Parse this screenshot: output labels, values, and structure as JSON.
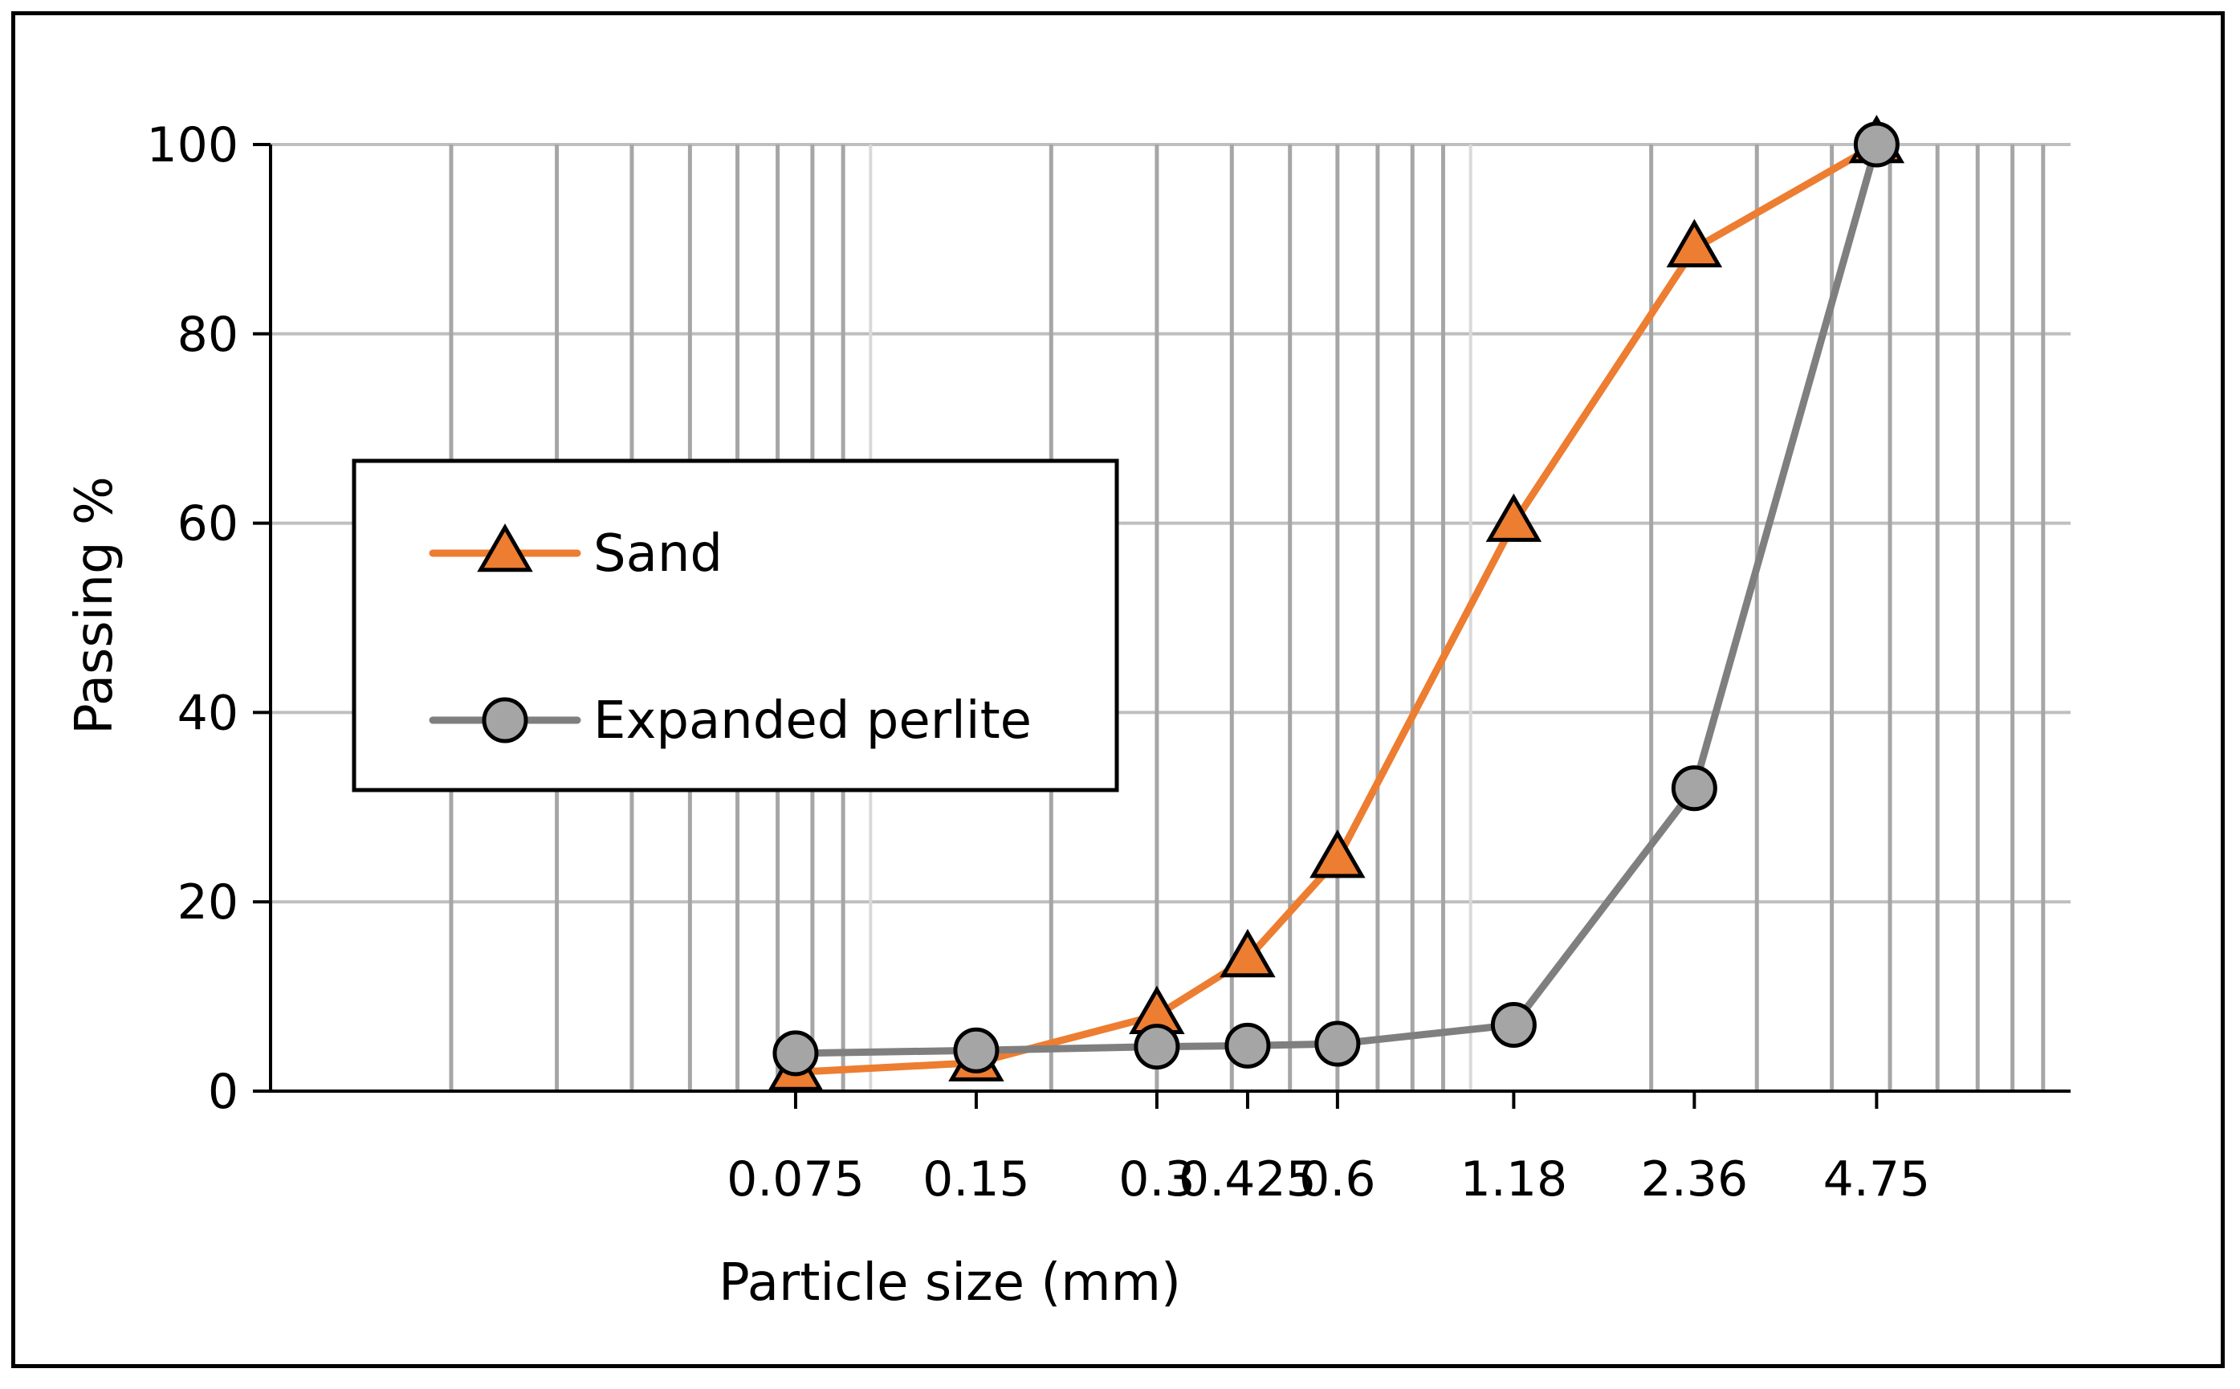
{
  "chart_data": {
    "type": "line",
    "title": "",
    "xlabel": "Particle size (mm)",
    "ylabel": "Passing %",
    "x_scale": "log",
    "xlim": [
      0.01,
      10
    ],
    "ylim": [
      0,
      100
    ],
    "y_ticks": [
      0,
      20,
      40,
      60,
      80,
      100
    ],
    "x_tick_values": [
      0.075,
      0.15,
      0.3,
      0.425,
      0.6,
      1.18,
      2.36,
      4.75
    ],
    "x_tick_labels": [
      "0.075",
      "0.15",
      "0.3",
      "0.425",
      "0.6",
      "1.18",
      "2.36",
      "4.75"
    ],
    "grid": true,
    "legend_position": "left-center",
    "series": [
      {
        "name": "Sand",
        "color": "#ED7D31",
        "marker": "triangle",
        "x": [
          0.075,
          0.15,
          0.3,
          0.425,
          0.6,
          1.18,
          2.36,
          4.75
        ],
        "y": [
          2,
          3,
          8,
          14,
          24.5,
          60,
          89,
          100
        ]
      },
      {
        "name": "Expanded perlite",
        "color": "#7F7F7F",
        "marker": "circle",
        "x": [
          0.075,
          0.15,
          0.3,
          0.425,
          0.6,
          1.18,
          2.36,
          4.75
        ],
        "y": [
          4,
          4.3,
          4.7,
          4.8,
          5,
          7,
          32,
          100
        ]
      }
    ]
  }
}
